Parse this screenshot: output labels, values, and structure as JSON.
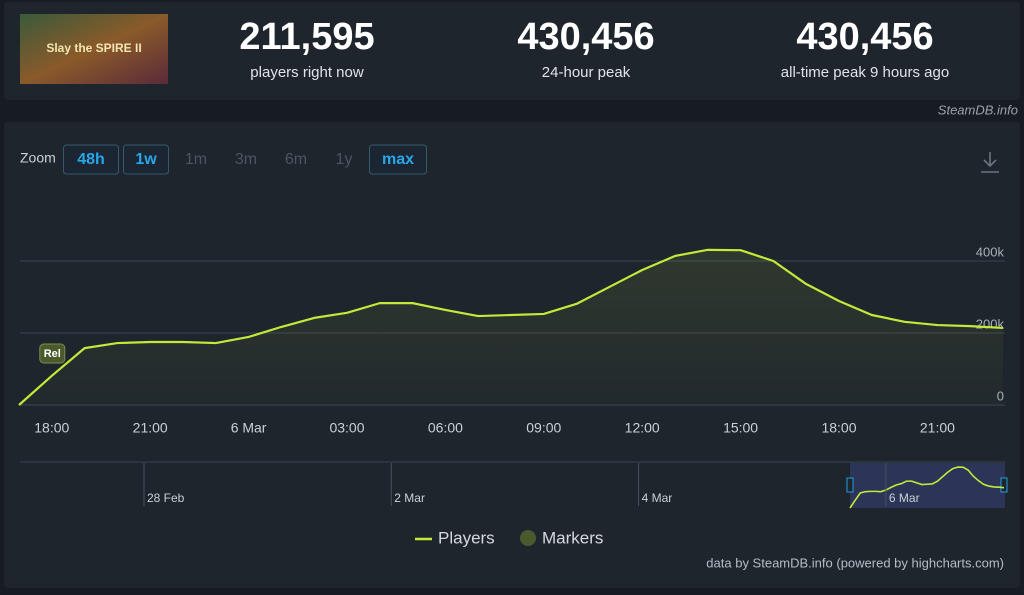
{
  "header": {
    "logo_text": "Slay the SPIRE II",
    "stats": [
      {
        "value": "211,595",
        "label": "players right now"
      },
      {
        "value": "430,456",
        "label": "24-hour peak"
      },
      {
        "value": "430,456",
        "label": "all-time peak 9 hours ago"
      }
    ],
    "source": "SteamDB.info"
  },
  "zoom": {
    "label": "Zoom",
    "buttons": [
      "48h",
      "1w",
      "1m",
      "3m",
      "6m",
      "1y",
      "max"
    ],
    "active": [
      "48h",
      "1w",
      "max"
    ]
  },
  "chart_data": {
    "type": "line",
    "categories": [
      null,
      "18:00",
      null,
      null,
      "21:00",
      null,
      null,
      "6 Mar",
      null,
      null,
      "03:00",
      null,
      null,
      "06:00",
      null,
      null,
      "09:00",
      null,
      null,
      "12:00",
      null,
      null,
      "15:00",
      null,
      null,
      "18:00",
      null,
      null,
      "21:00",
      null,
      null
    ],
    "series": [
      {
        "name": "Players",
        "color": "#c3e93a",
        "values": [
          0,
          81000,
          158000,
          172000,
          175000,
          175000,
          172000,
          189000,
          217000,
          242000,
          256000,
          283000,
          283000,
          264000,
          247000,
          250000,
          253000,
          281000,
          328000,
          375000,
          414000,
          431000,
          430000,
          400000,
          336000,
          289000,
          250000,
          231000,
          222000,
          219000,
          214000
        ]
      }
    ],
    "markers_legend": {
      "name": "Markers",
      "color": "#4a5a2c"
    },
    "markers": [
      {
        "label": "Rel",
        "category": "18:00"
      }
    ],
    "ylim": [
      0,
      600000
    ],
    "yticks": [
      0,
      {
        "value": 200000,
        "label": "200k"
      },
      {
        "value": 400000,
        "label": "400k"
      }
    ],
    "grid": true
  },
  "navigator": {
    "labels": [
      "28 Feb",
      "2 Mar",
      "4 Mar",
      "6 Mar"
    ]
  },
  "credits": "data by SteamDB.info (powered by highcharts.com)"
}
